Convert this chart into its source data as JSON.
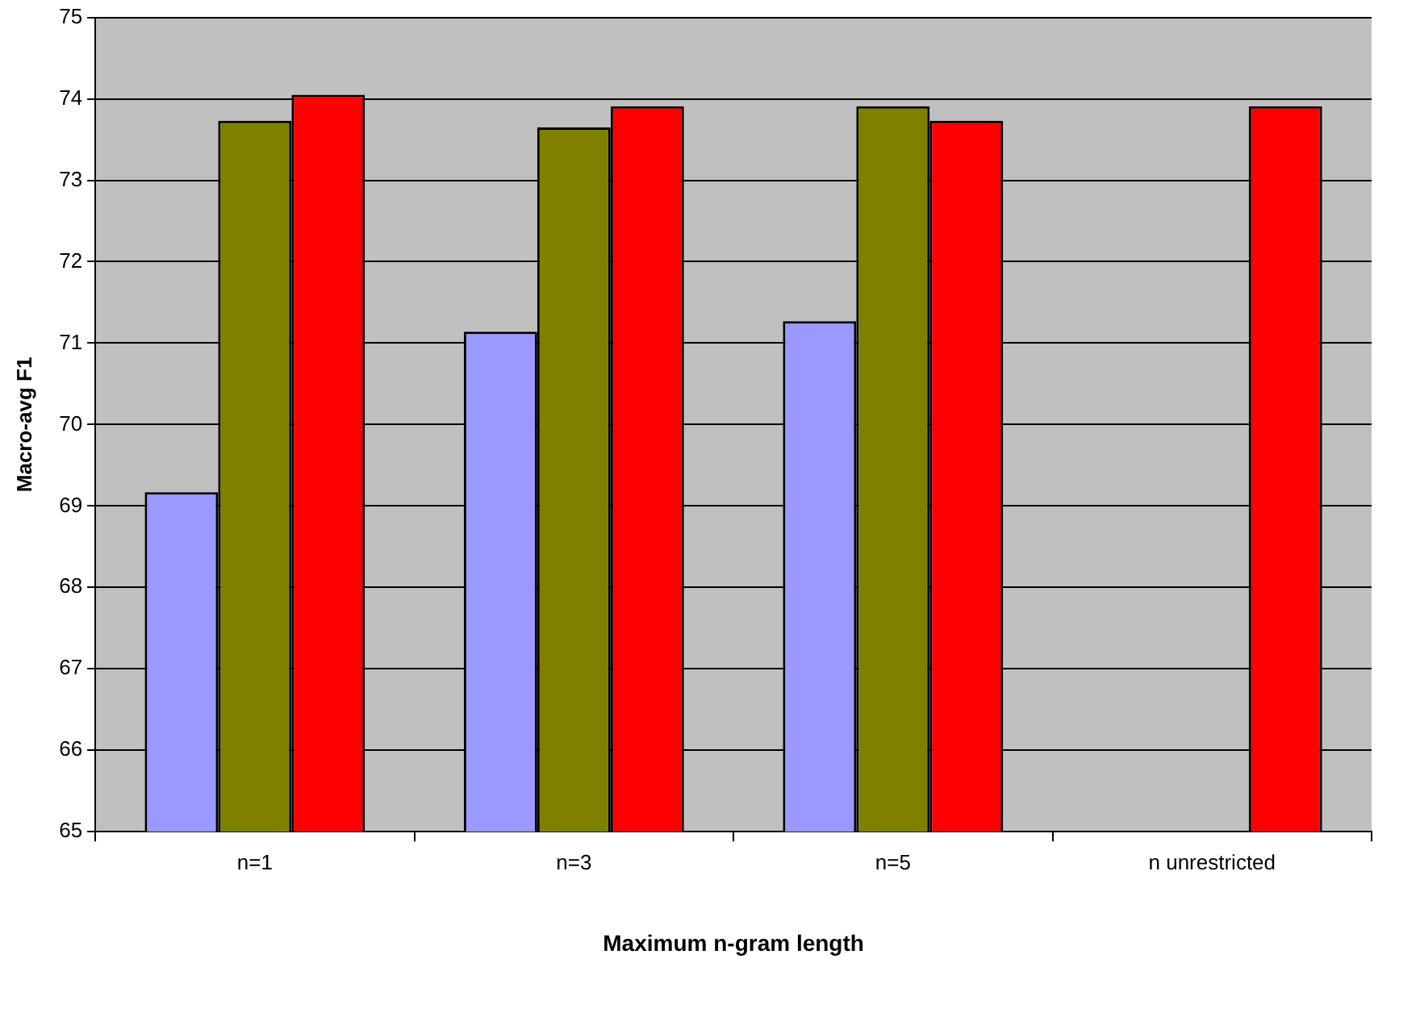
{
  "chart_data": {
    "type": "bar",
    "xlabel": "Maximum n-gram length",
    "ylabel": "Macro-avg F1",
    "categories": [
      "n=1",
      "n=3",
      "n=5",
      "n unrestricted"
    ],
    "series": [
      {
        "color": "#9999ff",
        "values": [
          69.17,
          71.14,
          71.27,
          null
        ]
      },
      {
        "color": "#808000",
        "values": [
          73.73,
          73.65,
          73.91,
          null
        ]
      },
      {
        "color": "#ff0000",
        "values": [
          74.05,
          73.91,
          73.73,
          73.91
        ]
      }
    ],
    "ylim": [
      65,
      75
    ],
    "yticks": [
      65,
      66,
      67,
      68,
      69,
      70,
      71,
      72,
      73,
      74,
      75
    ],
    "grid": "y",
    "legend": false
  }
}
